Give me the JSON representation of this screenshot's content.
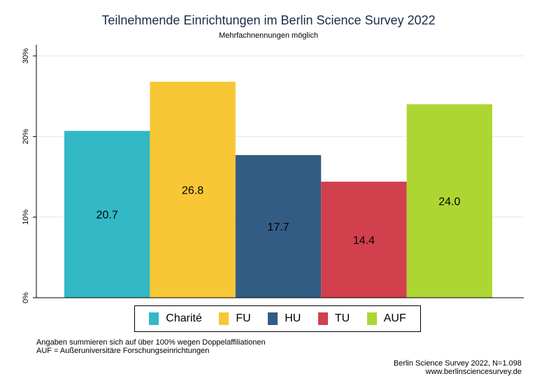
{
  "chart_data": {
    "type": "bar",
    "title": "Teilnehmende Einrichtungen im Berlin Science Survey 2022",
    "subtitle": "Mehrfachnennungen möglich",
    "categories": [
      "Charité",
      "FU",
      "HU",
      "TU",
      "AUF"
    ],
    "values": [
      20.7,
      26.8,
      17.7,
      14.4,
      24.0
    ],
    "value_labels": [
      "20.7",
      "26.8",
      "17.7",
      "14.4",
      "24.0"
    ],
    "colors": [
      "#33b8c6",
      "#f7c735",
      "#335c85",
      "#d23f4d",
      "#add633"
    ],
    "ylim": [
      0,
      30
    ],
    "yticks": [
      0,
      10,
      20,
      30
    ],
    "ytick_labels": [
      "0%",
      "10%",
      "20%",
      "30%"
    ],
    "xlabel": "",
    "ylabel": "",
    "grid": true,
    "legend": "bottom"
  },
  "notes": {
    "line1": "Angaben summieren sich auf über 100% wegen Doppelaffiliationen",
    "line2": "AUF = Außeruniversitäre Forschungseinrichtungen"
  },
  "source": {
    "line1": "Berlin Science Survey 2022, N=1.098",
    "line2": "www.berlinsciencesurvey.de"
  }
}
